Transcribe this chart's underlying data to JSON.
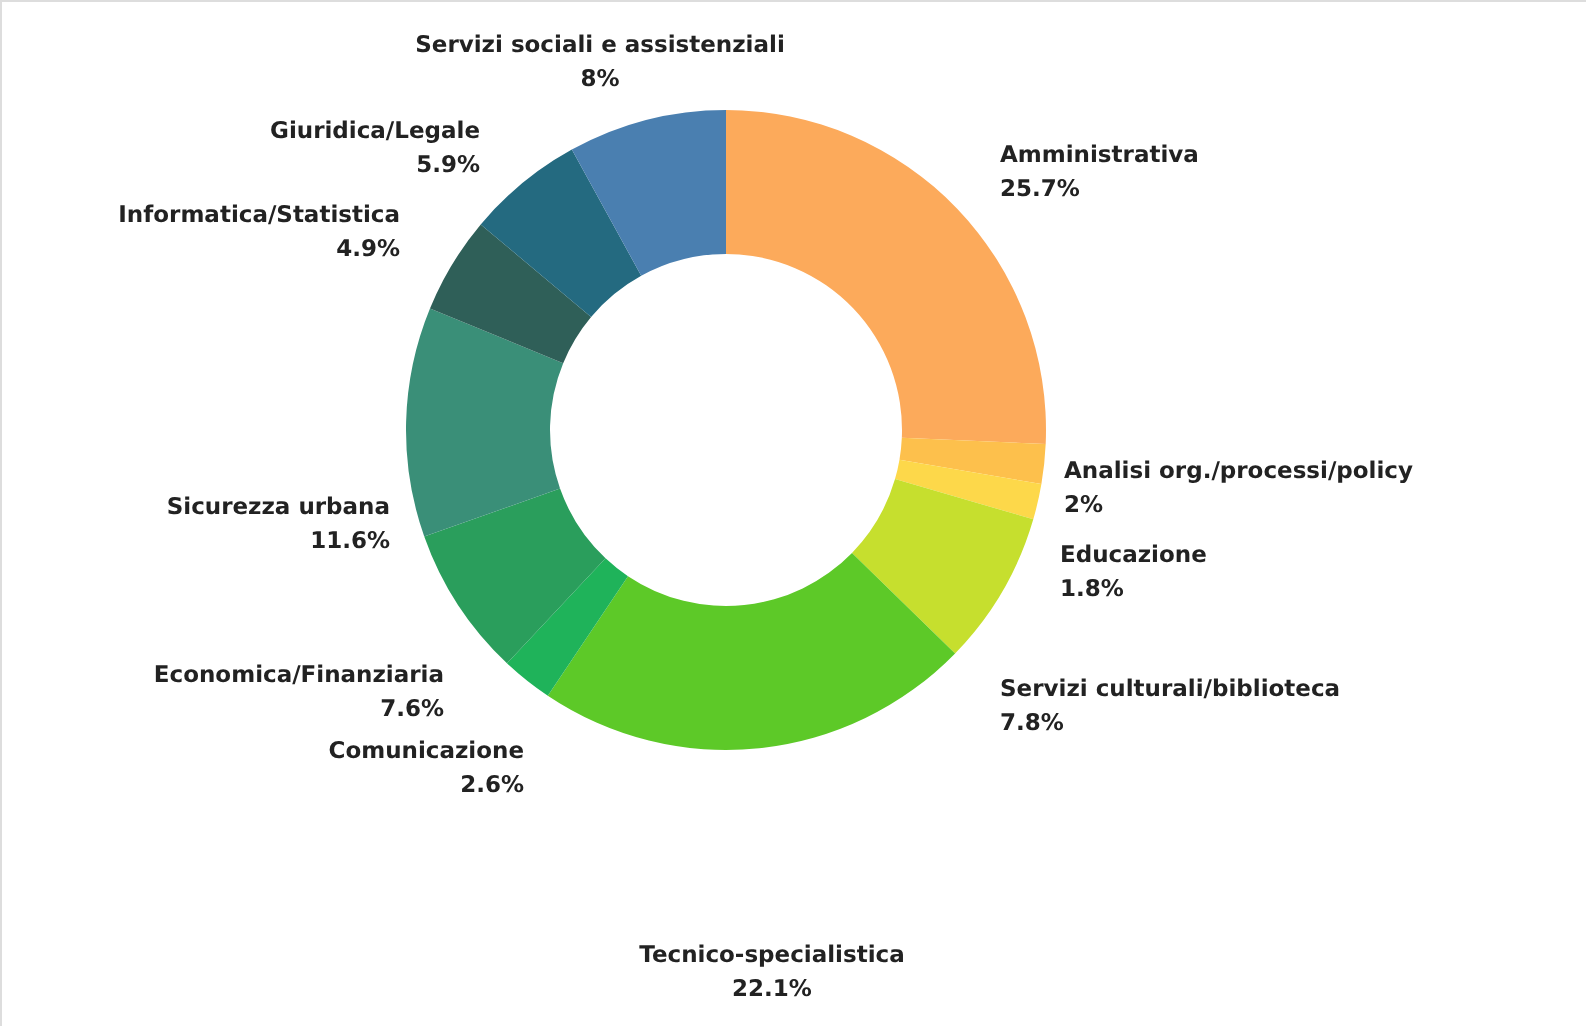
{
  "chart_data": {
    "type": "donut",
    "categories": [
      "Amministrativa",
      "Analisi org./processi/policy",
      "Educazione",
      "Servizi culturali/biblioteca",
      "Tecnico-specialistica",
      "Comunicazione",
      "Economica/Finanziaria",
      "Sicurezza urbana",
      "Informatica/Statistica",
      "Giuridica/Legale",
      "Servizi sociali e assistenziali"
    ],
    "values": [
      25.7,
      2,
      1.8,
      7.8,
      22.1,
      2.6,
      7.6,
      11.6,
      4.9,
      5.9,
      8
    ],
    "value_labels": [
      "25.7%",
      "2%",
      "1.8%",
      "7.8%",
      "22.1%",
      "2.6%",
      "7.6%",
      "11.6%",
      "4.9%",
      "5.9%",
      "8%"
    ],
    "colors": [
      "#fcaa5b",
      "#fdc04c",
      "#fdd84a",
      "#c6df2e",
      "#5dc928",
      "#1fb35a",
      "#2a9e5c",
      "#3a8f78",
      "#2f5f58",
      "#246a80",
      "#4a7fb0"
    ]
  }
}
